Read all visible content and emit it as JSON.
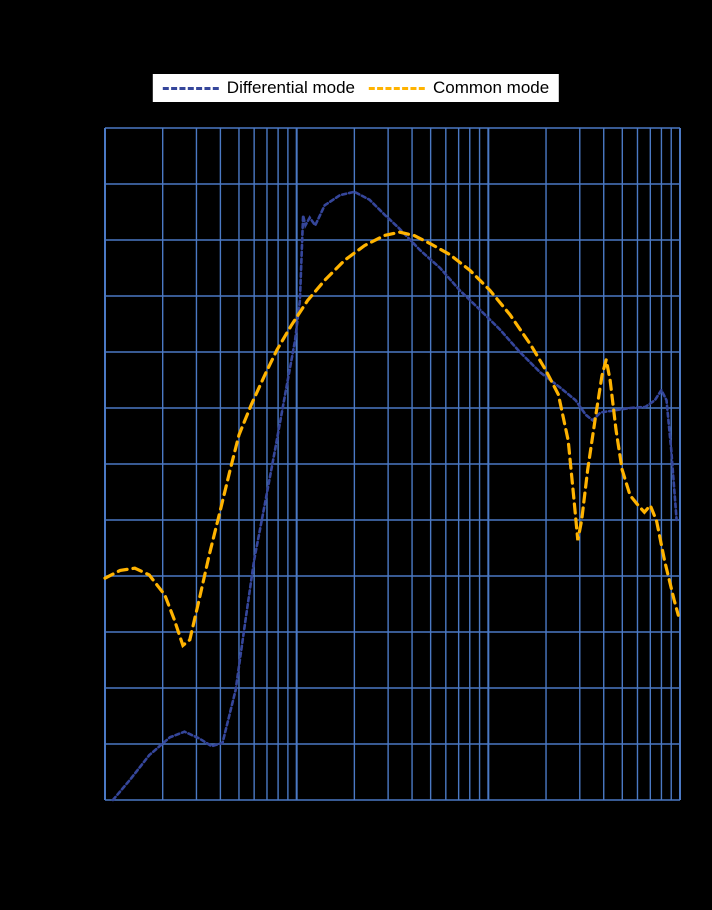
{
  "colors": {
    "background": "#000000",
    "grid": "#4b79c4",
    "differential": "#35469b",
    "common": "#ffb300",
    "legend_background": "#ffffff",
    "legend_text": "#000000"
  },
  "chart_data": {
    "type": "line",
    "title": "",
    "xlabel": "",
    "ylabel": "",
    "x_unit": "MHz",
    "xscale": "log",
    "xlim": [
      0.1,
      100
    ],
    "ylim": [
      0,
      60
    ],
    "y_grid_step": 5,
    "grid": true,
    "legend_position": "top-center",
    "series": [
      {
        "name": "Differential mode",
        "color": "#35469b",
        "dash": "4 3",
        "points": [
          [
            0.11,
            0
          ],
          [
            0.135,
            1.8
          ],
          [
            0.17,
            4.0
          ],
          [
            0.218,
            5.6
          ],
          [
            0.26,
            6.1
          ],
          [
            0.31,
            5.5
          ],
          [
            0.36,
            4.8
          ],
          [
            0.41,
            5.1
          ],
          [
            0.48,
            9.8
          ],
          [
            0.54,
            16.0
          ],
          [
            0.6,
            21.4
          ],
          [
            0.68,
            26.3
          ],
          [
            0.77,
            31.2
          ],
          [
            0.87,
            36.2
          ],
          [
            0.98,
            41.0
          ],
          [
            1.04,
            44.6
          ],
          [
            1.08,
            52.2
          ],
          [
            1.11,
            51.3
          ],
          [
            1.17,
            52.0
          ],
          [
            1.25,
            51.3
          ],
          [
            1.4,
            53.1
          ],
          [
            1.68,
            54.0
          ],
          [
            2.0,
            54.3
          ],
          [
            2.4,
            53.6
          ],
          [
            2.9,
            52.2
          ],
          [
            3.4,
            51.1
          ],
          [
            4.4,
            49.1
          ],
          [
            5.6,
            47.5
          ],
          [
            7.1,
            45.5
          ],
          [
            9.0,
            43.8
          ],
          [
            11.5,
            42.0
          ],
          [
            14.6,
            40.0
          ],
          [
            18.6,
            38.2
          ],
          [
            23.8,
            36.8
          ],
          [
            28.5,
            35.7
          ],
          [
            32.2,
            34.4
          ],
          [
            35.0,
            33.9
          ],
          [
            38.5,
            34.6
          ],
          [
            46.0,
            34.8
          ],
          [
            55.0,
            35.0
          ],
          [
            66.0,
            35.1
          ],
          [
            74.0,
            35.7
          ],
          [
            80.0,
            36.6
          ],
          [
            85.0,
            35.7
          ],
          [
            90.0,
            31.3
          ],
          [
            96.0,
            25.0
          ]
        ]
      },
      {
        "name": "Common mode",
        "color": "#ffb300",
        "dash": "9 6",
        "points": [
          [
            0.1,
            19.8
          ],
          [
            0.12,
            20.5
          ],
          [
            0.143,
            20.7
          ],
          [
            0.17,
            20.1
          ],
          [
            0.205,
            18.3
          ],
          [
            0.23,
            16.1
          ],
          [
            0.255,
            13.8
          ],
          [
            0.277,
            14.3
          ],
          [
            0.31,
            17.9
          ],
          [
            0.35,
            21.9
          ],
          [
            0.4,
            25.9
          ],
          [
            0.45,
            29.5
          ],
          [
            0.5,
            32.6
          ],
          [
            0.58,
            35.3
          ],
          [
            0.68,
            37.9
          ],
          [
            0.79,
            40.2
          ],
          [
            0.94,
            42.4
          ],
          [
            1.14,
            44.6
          ],
          [
            1.4,
            46.4
          ],
          [
            1.78,
            48.2
          ],
          [
            2.26,
            49.5
          ],
          [
            2.87,
            50.4
          ],
          [
            3.45,
            50.7
          ],
          [
            4.1,
            50.4
          ],
          [
            4.95,
            49.7
          ],
          [
            6.3,
            48.7
          ],
          [
            8.0,
            47.3
          ],
          [
            10.2,
            45.5
          ],
          [
            13.0,
            43.3
          ],
          [
            16.7,
            40.6
          ],
          [
            19.9,
            38.4
          ],
          [
            23.2,
            36.2
          ],
          [
            26.1,
            32.1
          ],
          [
            28.0,
            26.8
          ],
          [
            29.3,
            23.2
          ],
          [
            30.7,
            25.0
          ],
          [
            33.0,
            29.5
          ],
          [
            36.0,
            33.9
          ],
          [
            39.2,
            37.9
          ],
          [
            41.2,
            39.3
          ],
          [
            43.2,
            37.5
          ],
          [
            46.4,
            33.0
          ],
          [
            49.9,
            29.5
          ],
          [
            54.9,
            27.2
          ],
          [
            60.5,
            26.3
          ],
          [
            65.2,
            25.7
          ],
          [
            70.0,
            26.3
          ],
          [
            75.5,
            24.9
          ],
          [
            83.0,
            21.4
          ],
          [
            93.0,
            17.9
          ],
          [
            98.0,
            16.5
          ]
        ]
      }
    ]
  }
}
